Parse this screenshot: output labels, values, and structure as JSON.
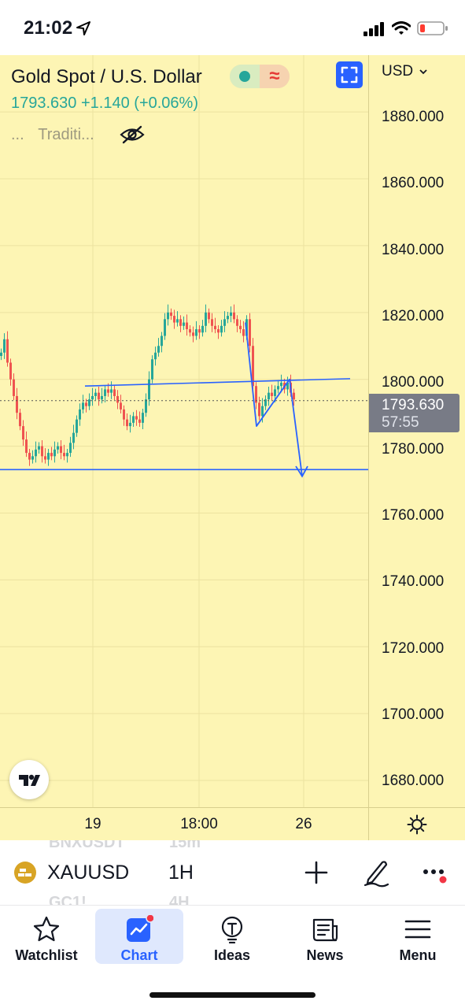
{
  "status_bar": {
    "time": "21:02",
    "icons": [
      "location-arrow-icon",
      "cellular-signal-icon",
      "wifi-icon",
      "battery-low-icon"
    ]
  },
  "chart": {
    "title": "Gold Spot / U.S. Dollar",
    "last_price": "1793.630",
    "change": "+1.140",
    "change_pct": "(+0.06%)",
    "style_dots": "...",
    "style_label": "Traditi...",
    "currency": "USD",
    "price_ticks": [
      "1880.000",
      "1860.000",
      "1840.000",
      "1820.000",
      "1800.000",
      "1780.000",
      "1760.000",
      "1740.000",
      "1720.000",
      "1700.000",
      "1680.000"
    ],
    "badge_price": "1793.630",
    "badge_countdown": "57:55",
    "time_ticks": [
      "19",
      "18:00",
      "26"
    ],
    "colors": {
      "background": "#fdf5b4",
      "up_candle": "#26a69a",
      "down_candle": "#ef5350",
      "drawing": "#2962ff",
      "last_price_line": "#555555"
    }
  },
  "chart_data": {
    "type": "candlestick",
    "symbol": "XAUUSD",
    "interval": "1H",
    "ylim": [
      1672,
      1897
    ],
    "x_ticks": [
      "19",
      "18:00",
      "26"
    ],
    "last_price": 1793.63,
    "close_path": [
      [
        0,
        1808
      ],
      [
        4,
        1812
      ],
      [
        8,
        1805
      ],
      [
        12,
        1800
      ],
      [
        16,
        1795
      ],
      [
        20,
        1790
      ],
      [
        24,
        1786
      ],
      [
        28,
        1782
      ],
      [
        32,
        1778
      ],
      [
        36,
        1776
      ],
      [
        40,
        1777
      ],
      [
        44,
        1779
      ],
      [
        48,
        1780
      ],
      [
        52,
        1777
      ],
      [
        56,
        1776
      ],
      [
        60,
        1778
      ],
      [
        64,
        1777
      ],
      [
        68,
        1779
      ],
      [
        72,
        1780
      ],
      [
        76,
        1778
      ],
      [
        80,
        1777
      ],
      [
        84,
        1778
      ],
      [
        88,
        1781
      ],
      [
        92,
        1784
      ],
      [
        96,
        1788
      ],
      [
        100,
        1791
      ],
      [
        104,
        1793
      ],
      [
        108,
        1792
      ],
      [
        112,
        1794
      ],
      [
        116,
        1795
      ],
      [
        120,
        1796
      ],
      [
        124,
        1794
      ],
      [
        128,
        1795
      ],
      [
        132,
        1797
      ],
      [
        136,
        1796
      ],
      [
        140,
        1797
      ],
      [
        144,
        1795
      ],
      [
        148,
        1793
      ],
      [
        152,
        1791
      ],
      [
        156,
        1788
      ],
      [
        160,
        1786
      ],
      [
        164,
        1787
      ],
      [
        168,
        1789
      ],
      [
        172,
        1788
      ],
      [
        176,
        1787
      ],
      [
        180,
        1790
      ],
      [
        184,
        1794
      ],
      [
        188,
        1800
      ],
      [
        192,
        1806
      ],
      [
        196,
        1808
      ],
      [
        200,
        1810
      ],
      [
        204,
        1813
      ],
      [
        208,
        1818
      ],
      [
        212,
        1820
      ],
      [
        216,
        1819
      ],
      [
        220,
        1817
      ],
      [
        224,
        1818
      ],
      [
        228,
        1816
      ],
      [
        232,
        1817
      ],
      [
        236,
        1815
      ],
      [
        240,
        1814
      ],
      [
        244,
        1813
      ],
      [
        248,
        1815
      ],
      [
        252,
        1814
      ],
      [
        256,
        1816
      ],
      [
        260,
        1820
      ],
      [
        264,
        1818
      ],
      [
        268,
        1816
      ],
      [
        272,
        1815
      ],
      [
        276,
        1814
      ],
      [
        280,
        1816
      ],
      [
        284,
        1818
      ],
      [
        288,
        1819
      ],
      [
        292,
        1820
      ],
      [
        296,
        1818
      ],
      [
        300,
        1816
      ],
      [
        304,
        1815
      ],
      [
        308,
        1813
      ],
      [
        312,
        1818
      ],
      [
        316,
        1810
      ],
      [
        320,
        1798
      ],
      [
        324,
        1793
      ],
      [
        328,
        1789
      ],
      [
        332,
        1792
      ],
      [
        336,
        1794
      ],
      [
        340,
        1796
      ],
      [
        344,
        1795
      ],
      [
        348,
        1797
      ],
      [
        352,
        1798
      ],
      [
        356,
        1799
      ],
      [
        360,
        1797
      ],
      [
        364,
        1799
      ],
      [
        368,
        1796
      ],
      [
        372,
        1794
      ]
    ]
  },
  "symbol_bar": {
    "symbol": "XAUUSD",
    "interval": "1H",
    "ghost_symbol_top": "BNXUSDT",
    "ghost_interval_top": "15m",
    "ghost_symbol_bottom": "GC1!",
    "ghost_interval_bottom": "4H"
  },
  "nav": [
    {
      "label": "Watchlist",
      "icon": "star-icon",
      "active": false
    },
    {
      "label": "Chart",
      "icon": "chart-icon",
      "active": true
    },
    {
      "label": "Ideas",
      "icon": "lightbulb-icon",
      "active": false
    },
    {
      "label": "News",
      "icon": "newspaper-icon",
      "active": false
    },
    {
      "label": "Menu",
      "icon": "hamburger-menu-icon",
      "active": false
    }
  ]
}
